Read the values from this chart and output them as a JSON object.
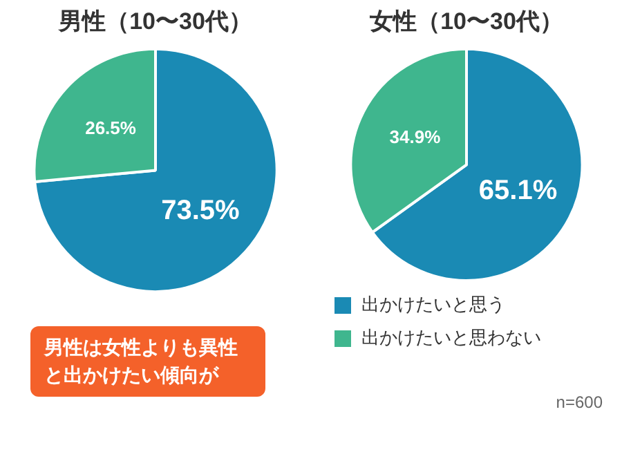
{
  "chart_data": [
    {
      "type": "pie",
      "title": "男性（10〜30代）",
      "categories": [
        null,
        null
      ],
      "values": [
        73.5,
        26.5
      ],
      "colors": [
        "#1a8ab4",
        "#3fb68e"
      ],
      "value_labels": [
        "73.5%",
        "26.5%"
      ],
      "legend": false,
      "annotations": [
        "男性は女性よりも異性と出かけたい傾向が"
      ]
    },
    {
      "type": "pie",
      "title": "女性（10〜30代）",
      "categories": [
        "出かけたいと思う",
        "出かけたいと思わない"
      ],
      "values": [
        65.1,
        34.9
      ],
      "colors": [
        "#1a8ab4",
        "#3fb68e"
      ],
      "value_labels": [
        "65.1%",
        "34.9%"
      ],
      "legend": "bottom",
      "annotations": [
        "n=600"
      ]
    }
  ]
}
